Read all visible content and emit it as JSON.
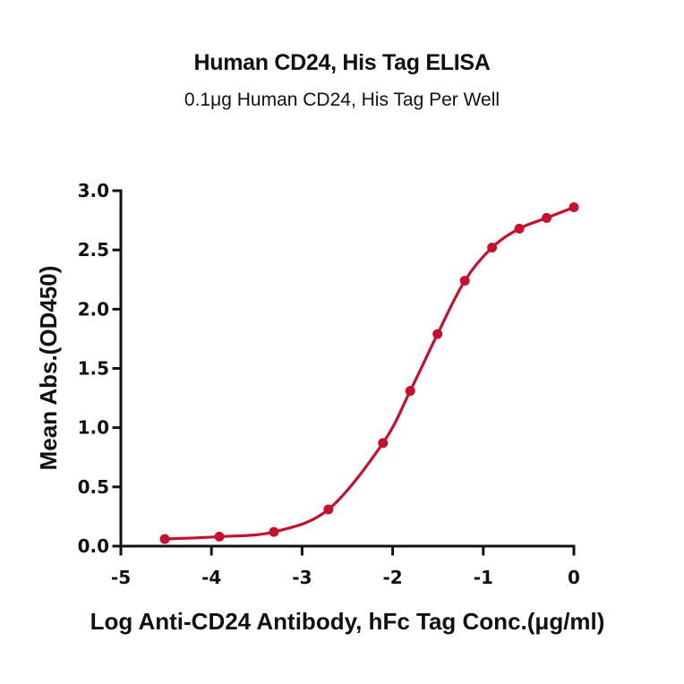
{
  "chart_data": {
    "type": "line",
    "title": "Human CD24, His Tag ELISA",
    "subtitle": "0.1μg Human CD24, His Tag Per Well",
    "xlabel": "Log Anti-CD24 Antibody, hFc Tag Conc.(μg/ml)",
    "ylabel": "Mean Abs.(OD450)",
    "xlim": [
      -5,
      0
    ],
    "ylim": [
      0,
      3.0
    ],
    "xticks": [
      -5,
      -4,
      -3,
      -2,
      -1,
      0
    ],
    "xtick_labels": [
      "-5",
      "-4",
      "-3",
      "-2",
      "-1",
      "0"
    ],
    "yticks": [
      0,
      0.5,
      1.0,
      1.5,
      2.0,
      2.5,
      3.0
    ],
    "ytick_labels": [
      "0.0",
      "0.5",
      "1.0",
      "1.5",
      "2.0",
      "2.5",
      "3.0"
    ],
    "grid": false,
    "legend": null,
    "series": [
      {
        "name": "Human CD24, His Tag",
        "color": "#C8102E",
        "marker": "circle",
        "fit": "4PL sigmoidal",
        "x": [
          -4.515,
          -3.913,
          -3.311,
          -2.709,
          -2.107,
          -1.806,
          -1.505,
          -1.204,
          -0.903,
          -0.602,
          -0.301,
          0.0
        ],
        "values": [
          0.06,
          0.08,
          0.12,
          0.31,
          0.87,
          1.31,
          1.79,
          2.24,
          2.52,
          2.68,
          2.77,
          2.86
        ]
      }
    ]
  }
}
